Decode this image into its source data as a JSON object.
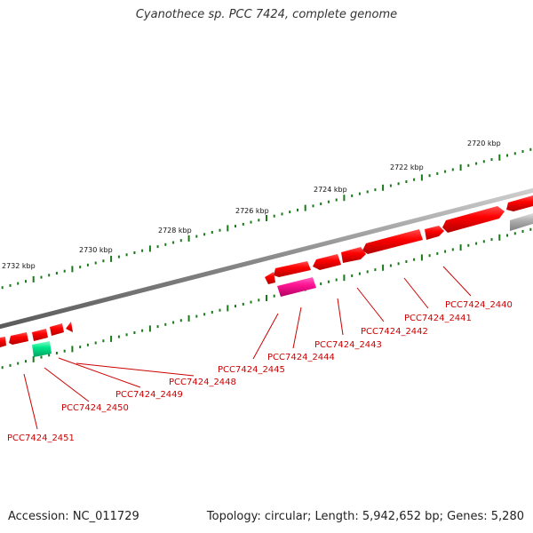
{
  "title": "Cyanothece sp. PCC 7424, complete genome",
  "footer": {
    "accession_label": "Accession: NC_011729",
    "summary_label": "Topology: circular; Length: 5,942,652 bp; Genes: 5,280"
  },
  "scale": {
    "labels": [
      "2720 kbp",
      "2722 kbp",
      "2724 kbp",
      "2726 kbp",
      "2728 kbp",
      "2730 kbp",
      "2732 kbp"
    ]
  },
  "genes": [
    {
      "label": "PCC7424_2440",
      "color": "#ff0000"
    },
    {
      "label": "PCC7424_2441",
      "color": "#ff0000"
    },
    {
      "label": "PCC7424_2442",
      "color": "#ff0000"
    },
    {
      "label": "PCC7424_2443",
      "color": "#ff0000"
    },
    {
      "label": "PCC7424_2444",
      "color": "#ff1493"
    },
    {
      "label": "PCC7424_2445",
      "color": "#ff0000"
    },
    {
      "label": "PCC7424_2448",
      "color": "#ff0000"
    },
    {
      "label": "PCC7424_2449",
      "color": "#ff0000"
    },
    {
      "label": "PCC7424_2450",
      "color": "#00e68a"
    },
    {
      "label": "PCC7424_2451",
      "color": "#ff0000"
    }
  ],
  "colors": {
    "backbone": "#808080",
    "ticks": "#1a7a1a",
    "label": "#cc0000",
    "gene_forward": "#ff0000",
    "gene_pink": "#ff1493",
    "gene_green": "#00e68a",
    "gene_gray": "#aaaaaa"
  }
}
